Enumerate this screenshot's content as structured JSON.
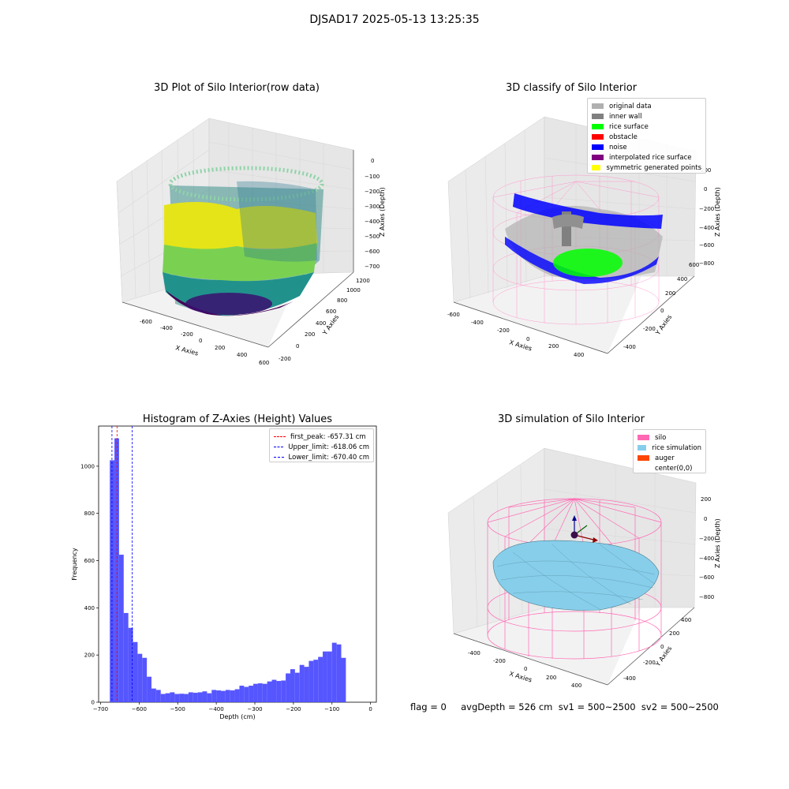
{
  "suptitle": "DJSAD17 2025-05-13 13:25:35",
  "status_text": "flag = 0     avgDepth = 526 cm  sv1 = 500~2500  sv2 = 500~2500",
  "panels": {
    "raw": {
      "title": "3D Plot of Silo Interior(row data)",
      "xlabel": "X Axies",
      "ylabel": "Y Axies",
      "zlabel": "Z Axies (Depth)",
      "xticks": [
        "-600",
        "-400",
        "-200",
        "0",
        "200",
        "400",
        "600"
      ],
      "yticks": [
        "-200",
        "0",
        "200",
        "400",
        "600",
        "800",
        "1000",
        "1200"
      ],
      "zticks": [
        "0",
        "−100",
        "−200",
        "−300",
        "−400",
        "−500",
        "−600",
        "−700"
      ]
    },
    "classify": {
      "title": "3D classify of Silo Interior",
      "xlabel": "X Axies",
      "ylabel": "Y Axies",
      "zlabel": "Z Axies (Depth)",
      "xticks": [
        "-600",
        "-400",
        "-200",
        "0",
        "200",
        "400"
      ],
      "yticks": [
        "-400",
        "-200",
        "0",
        "200",
        "400",
        "600"
      ],
      "zticks": [
        "200",
        "0",
        "−200",
        "−400",
        "−600",
        "−800"
      ],
      "legend": [
        {
          "label": "original data",
          "color": "#b0b0b0"
        },
        {
          "label": "inner wall",
          "color": "#808080"
        },
        {
          "label": "rice surface",
          "color": "#00ff00"
        },
        {
          "label": "obstacle",
          "color": "#ff0000"
        },
        {
          "label": "noise",
          "color": "#0000ff"
        },
        {
          "label": "interpolated rice surface",
          "color": "#800080"
        },
        {
          "label": "symmetric generated points",
          "color": "#ffff00"
        }
      ]
    },
    "simulation": {
      "title": "3D simulation of Silo Interior",
      "xlabel": "X Axies",
      "ylabel": "Y Axies",
      "zlabel": "Z Axies (Depth)",
      "xticks": [
        "-400",
        "-200",
        "0",
        "200",
        "400"
      ],
      "yticks": [
        "-400",
        "-200",
        "0",
        "200",
        "400"
      ],
      "zticks": [
        "200",
        "0",
        "−200",
        "−400",
        "−600",
        "−800"
      ],
      "legend": [
        {
          "label": "silo",
          "color": "#ff69b4"
        },
        {
          "label": "rice simulation",
          "color": "#87ceeb"
        },
        {
          "label": "auger",
          "color": "#ff4500"
        },
        {
          "label": "center(0,0)",
          "color": ""
        }
      ]
    }
  },
  "chart_data": {
    "type": "bar",
    "title": "Histogram of Z-Axies (Height) Values",
    "xlabel": "Depth (cm)",
    "ylabel": "Frequency",
    "xlim": [
      -705,
      15
    ],
    "ylim": [
      0,
      1170
    ],
    "xticks": [
      -700,
      -600,
      -500,
      -400,
      -300,
      -200,
      -100,
      0
    ],
    "yticks": [
      0,
      200,
      400,
      600,
      800,
      1000
    ],
    "bar_color": "#4d4dff",
    "bin_width": 12,
    "bins": [
      {
        "x0": -676,
        "value": 1025
      },
      {
        "x0": -664,
        "value": 1118
      },
      {
        "x0": -652,
        "value": 625
      },
      {
        "x0": -640,
        "value": 378
      },
      {
        "x0": -628,
        "value": 315
      },
      {
        "x0": -616,
        "value": 255
      },
      {
        "x0": -604,
        "value": 205
      },
      {
        "x0": -592,
        "value": 188
      },
      {
        "x0": -580,
        "value": 108
      },
      {
        "x0": -568,
        "value": 58
      },
      {
        "x0": -556,
        "value": 52
      },
      {
        "x0": -544,
        "value": 35
      },
      {
        "x0": -532,
        "value": 38
      },
      {
        "x0": -520,
        "value": 42
      },
      {
        "x0": -508,
        "value": 35
      },
      {
        "x0": -496,
        "value": 36
      },
      {
        "x0": -484,
        "value": 35
      },
      {
        "x0": -472,
        "value": 42
      },
      {
        "x0": -460,
        "value": 40
      },
      {
        "x0": -448,
        "value": 42
      },
      {
        "x0": -436,
        "value": 46
      },
      {
        "x0": -424,
        "value": 38
      },
      {
        "x0": -412,
        "value": 52
      },
      {
        "x0": -400,
        "value": 50
      },
      {
        "x0": -388,
        "value": 48
      },
      {
        "x0": -376,
        "value": 52
      },
      {
        "x0": -364,
        "value": 50
      },
      {
        "x0": -352,
        "value": 55
      },
      {
        "x0": -340,
        "value": 70
      },
      {
        "x0": -328,
        "value": 65
      },
      {
        "x0": -316,
        "value": 70
      },
      {
        "x0": -304,
        "value": 78
      },
      {
        "x0": -292,
        "value": 80
      },
      {
        "x0": -280,
        "value": 78
      },
      {
        "x0": -268,
        "value": 88
      },
      {
        "x0": -256,
        "value": 95
      },
      {
        "x0": -244,
        "value": 90
      },
      {
        "x0": -232,
        "value": 92
      },
      {
        "x0": -220,
        "value": 122
      },
      {
        "x0": -208,
        "value": 140
      },
      {
        "x0": -196,
        "value": 125
      },
      {
        "x0": -184,
        "value": 158
      },
      {
        "x0": -172,
        "value": 150
      },
      {
        "x0": -160,
        "value": 175
      },
      {
        "x0": -148,
        "value": 180
      },
      {
        "x0": -136,
        "value": 192
      },
      {
        "x0": -124,
        "value": 215
      },
      {
        "x0": -112,
        "value": 215
      },
      {
        "x0": -100,
        "value": 252
      },
      {
        "x0": -88,
        "value": 245
      },
      {
        "x0": -76,
        "value": 188
      }
    ],
    "vlines": [
      {
        "label": "first_peak: -657.31 cm",
        "x": -657.31,
        "color": "#ff0000"
      },
      {
        "label": "Upper_limit: -618.06 cm",
        "x": -618.06,
        "color": "#0000ff"
      },
      {
        "label": "Lower_limit: -670.40 cm",
        "x": -670.4,
        "color": "#0000ff"
      }
    ]
  }
}
